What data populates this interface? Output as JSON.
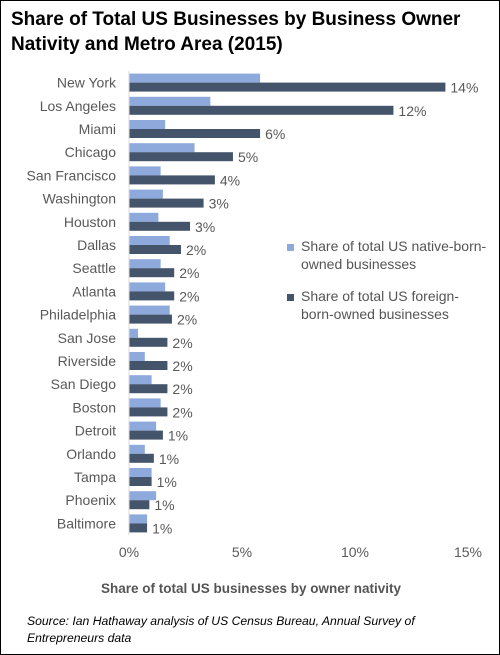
{
  "title": "Share of Total US Businesses by Business Owner Nativity and Metro Area (2015)",
  "source": "Source: Ian Hathaway analysis of US Census Bureau, Annual Survey of Entrepreneurs data",
  "colors": {
    "native": "#8EA9DB",
    "foreign": "#44546A",
    "axis": "#D9D9D9",
    "text": "#595959"
  },
  "chart_data": {
    "type": "bar",
    "orientation": "horizontal",
    "xlabel": "Share of total US businesses by owner nativity",
    "xlim": [
      0,
      15
    ],
    "xticks": [
      "0%",
      "5%",
      "10%",
      "15%"
    ],
    "categories": [
      "New York",
      "Los Angeles",
      "Miami",
      "Chicago",
      "San Francisco",
      "Washington",
      "Houston",
      "Dallas",
      "Seattle",
      "Atlanta",
      "Philadelphia",
      "San Jose",
      "Riverside",
      "San Diego",
      "Boston",
      "Detroit",
      "Orlando",
      "Tampa",
      "Phoenix",
      "Baltimore"
    ],
    "series": [
      {
        "name": "Share of total US native-born-owned businesses",
        "values": [
          5.8,
          3.6,
          1.6,
          2.9,
          1.4,
          1.5,
          1.3,
          1.8,
          1.4,
          1.6,
          1.8,
          0.4,
          0.7,
          1.0,
          1.4,
          1.2,
          0.7,
          1.0,
          1.2,
          0.8
        ],
        "labels": []
      },
      {
        "name": "Share of total US foreign-born-owned businesses",
        "values": [
          14.0,
          11.7,
          5.8,
          4.6,
          3.8,
          3.3,
          2.7,
          2.3,
          2.0,
          2.0,
          1.9,
          1.7,
          1.7,
          1.7,
          1.7,
          1.5,
          1.1,
          1.0,
          0.9,
          0.8
        ],
        "labels": [
          "14%",
          "12%",
          "6%",
          "5%",
          "4%",
          "3%",
          "3%",
          "2%",
          "2%",
          "2%",
          "2%",
          "2%",
          "2%",
          "2%",
          "2%",
          "1%",
          "1%",
          "1%",
          "1%",
          "1%"
        ]
      }
    ],
    "legend": [
      "Share of total US native-born-owned businesses",
      "Share of total US foreign-born-owned businesses"
    ],
    "legend_position": "right"
  }
}
